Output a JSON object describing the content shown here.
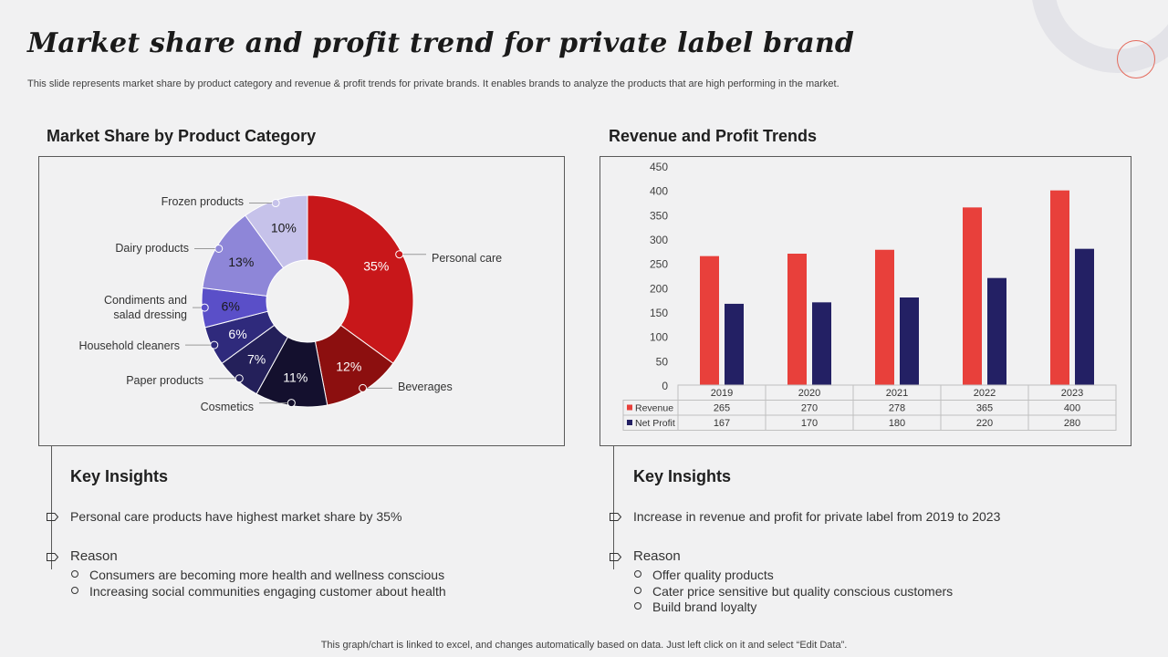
{
  "title": "Market share and profit trend for private label brand",
  "subtitle": "This slide represents market share by product category and revenue & profit trends for private  brands. It enables brands to analyze the products that are high performing in the market.",
  "left": {
    "heading": "Market Share by Product Category",
    "insights_title": "Key Insights",
    "insight": "Personal care products have highest market share by 35%",
    "reason_label": "Reason",
    "reasons": [
      "Consumers are becoming more health and wellness conscious",
      "Increasing social communities engaging customer about health"
    ]
  },
  "right": {
    "heading": "Revenue and Profit Trends",
    "insights_title": "Key Insights",
    "insight": "Increase in revenue and profit for private label from 2019 to 2023",
    "reason_label": "Reason",
    "reasons": [
      "Offer quality products",
      "Cater price sensitive but quality conscious customers",
      "Build brand loyalty"
    ]
  },
  "footer": "This graph/chart is linked to excel,  and changes automatically based on data. Just left click on it and select “Edit Data”.",
  "colors": {
    "revenue": "#e8403b",
    "net_profit": "#232064"
  },
  "chart_data": [
    {
      "type": "pie",
      "donut": true,
      "labels": [
        "Personal care",
        "Beverages",
        "Cosmetics",
        "Paper products",
        "Household cleaners",
        "Condiments and\nsalad dressing",
        "Dairy products",
        "Frozen products"
      ],
      "values": [
        35,
        12,
        11,
        7,
        6,
        6,
        13,
        10
      ],
      "value_labels": [
        "35%",
        "12%",
        "11%",
        "7%",
        "6%",
        "6%",
        "13%",
        "10%"
      ],
      "colors": [
        "#c8171a",
        "#8c0f0f",
        "#14102e",
        "#24205a",
        "#2f2a7c",
        "#5a4fc8",
        "#8e86d8",
        "#c6c2ea"
      ]
    },
    {
      "type": "bar",
      "categories": [
        "2019",
        "2020",
        "2021",
        "2022",
        "2023"
      ],
      "series": [
        {
          "name": "Revenue",
          "values": [
            265,
            270,
            278,
            365,
            400
          ]
        },
        {
          "name": "Net Profit",
          "values": [
            167,
            170,
            180,
            220,
            280
          ]
        }
      ],
      "ylim": [
        0,
        450
      ],
      "yticks": [
        "0",
        "50",
        "100",
        "150",
        "200",
        "250",
        "300",
        "350",
        "400",
        "450"
      ],
      "data_table": true
    }
  ]
}
